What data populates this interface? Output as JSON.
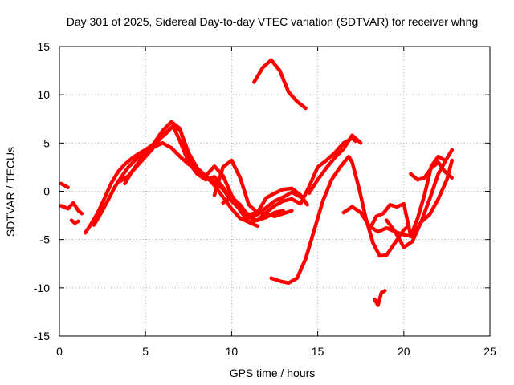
{
  "chart_data": {
    "type": "line",
    "title": "Day 301 of 2025, Sidereal Day-to-day VTEC variation (SDTVAR) for receiver whng",
    "xlabel": "GPS time / hours",
    "ylabel": "SDTVAR / TECUs",
    "xlim": [
      0,
      25
    ],
    "ylim": [
      -15,
      15
    ],
    "xticks": [
      0,
      5,
      10,
      15,
      20,
      25
    ],
    "yticks": [
      -15,
      -10,
      -5,
      0,
      5,
      10,
      15
    ],
    "grid": true,
    "legend": "none",
    "color": "#ff0000",
    "series": [
      {
        "name": "s1",
        "x": [
          0.1,
          0.5,
          0.8,
          1.1,
          1.3
        ],
        "y": [
          -1.5,
          -1.8,
          -1.2,
          -2.0,
          -2.3
        ]
      },
      {
        "name": "s2",
        "x": [
          0.1,
          0.3,
          0.5
        ],
        "y": [
          0.8,
          0.6,
          0.4
        ]
      },
      {
        "name": "s3",
        "x": [
          0.7,
          0.9,
          1.1
        ],
        "y": [
          -3.0,
          -3.3,
          -3.1
        ]
      },
      {
        "name": "s4",
        "x": [
          1.5,
          1.8,
          2.2,
          2.6,
          3.0,
          3.4,
          3.8,
          4.2,
          4.6,
          5.0,
          5.4,
          5.8,
          6.2,
          6.6,
          7.0,
          7.5,
          8.0,
          8.5,
          9.0,
          9.5,
          10.0,
          10.5,
          11.0,
          11.5,
          12.0,
          12.5,
          13.0,
          13.5
        ],
        "y": [
          -4.3,
          -3.5,
          -2.3,
          -0.8,
          0.8,
          2.0,
          2.8,
          3.4,
          3.9,
          4.3,
          4.8,
          5.4,
          6.0,
          6.8,
          5.2,
          3.0,
          1.8,
          1.5,
          1.0,
          0.2,
          -1.0,
          -1.9,
          -2.4,
          -2.2,
          -2.3,
          -2.6,
          -2.3,
          -2.0
        ]
      },
      {
        "name": "s5",
        "x": [
          2.0,
          2.4,
          2.8,
          3.2,
          3.6,
          4.0,
          4.5,
          5.0,
          5.5,
          6.0,
          6.5,
          7.0,
          7.5,
          8.0,
          8.5,
          9.0,
          9.5,
          10.0,
          10.5,
          11.0,
          11.5,
          12.0,
          12.5,
          13.0
        ],
        "y": [
          -3.5,
          -2.3,
          -1.0,
          0.4,
          1.5,
          2.5,
          3.4,
          4.1,
          4.6,
          5.0,
          4.5,
          3.6,
          2.8,
          2.2,
          1.6,
          0.6,
          -0.6,
          -1.8,
          -2.8,
          -3.2,
          -3.0,
          -2.7,
          -2.2,
          -2.0
        ]
      },
      {
        "name": "s6",
        "x": [
          3.5,
          4.0,
          4.5,
          5.0,
          5.5,
          6.0,
          6.5,
          7.0,
          7.5,
          8.0,
          8.5,
          9.0,
          9.5,
          10.0,
          10.5,
          11.0,
          11.5
        ],
        "y": [
          1.0,
          1.6,
          2.6,
          3.6,
          4.6,
          5.8,
          6.6,
          6.4,
          4.0,
          2.4,
          1.6,
          2.6,
          1.6,
          -0.4,
          -2.0,
          -3.2,
          -3.6
        ]
      },
      {
        "name": "s7",
        "x": [
          3.8,
          4.2,
          4.6,
          5.0,
          5.5,
          6.0,
          6.5,
          7.0,
          7.5,
          8.0,
          8.5,
          9.0,
          9.5,
          10.0,
          10.5,
          11.0,
          11.5,
          12.0,
          12.5,
          13.0,
          13.5,
          14.0,
          14.5,
          15.0,
          15.5,
          16.0,
          16.5,
          17.0,
          17.2
        ],
        "y": [
          0.8,
          2.0,
          3.0,
          3.8,
          5.0,
          6.3,
          7.2,
          6.5,
          3.5,
          1.8,
          1.2,
          1.5,
          0.4,
          -0.8,
          -1.7,
          -2.7,
          -3.0,
          -2.2,
          -1.5,
          -1.0,
          -0.8,
          -1.3,
          0.5,
          2.5,
          3.2,
          4.0,
          5.0,
          5.5,
          5.2
        ]
      },
      {
        "name": "s8",
        "x": [
          9.0,
          9.5,
          10.0,
          10.5,
          11.0,
          11.5,
          12.0,
          12.5,
          13.0,
          13.5,
          14.0,
          14.4
        ],
        "y": [
          -0.4,
          2.5,
          3.2,
          1.4,
          -1.4,
          -2.2,
          -0.7,
          -0.2,
          0.2,
          0.3,
          -0.4,
          -1.4
        ]
      },
      {
        "name": "s9",
        "x": [
          9.5,
          10.0,
          10.5,
          11.0,
          11.5,
          12.0,
          12.5,
          13.0,
          13.5,
          14.0
        ],
        "y": [
          -1.2,
          -0.6,
          -1.4,
          -2.6,
          -2.4,
          -1.7,
          -1.0,
          -0.6,
          -0.1,
          -0.6
        ]
      },
      {
        "name": "s10",
        "x": [
          11.3,
          11.8,
          12.3,
          12.8,
          13.3,
          13.8,
          14.3
        ],
        "y": [
          11.3,
          12.8,
          13.6,
          12.5,
          10.3,
          9.3,
          8.6
        ]
      },
      {
        "name": "s11",
        "x": [
          12.3,
          12.8,
          13.3,
          13.8,
          14.3,
          14.8,
          15.3,
          15.8,
          16.3,
          16.8,
          17.0,
          17.4,
          17.8,
          18.2,
          18.6,
          19.0,
          19.5,
          20.0,
          20.3
        ],
        "y": [
          -9.0,
          -9.3,
          -9.5,
          -9.0,
          -7.0,
          -4.0,
          -1.0,
          1.2,
          2.5,
          3.6,
          3.0,
          0.3,
          -2.8,
          -5.3,
          -6.7,
          -6.6,
          -5.3,
          -4.0,
          -3.6
        ]
      },
      {
        "name": "s12",
        "x": [
          14.5,
          15.0,
          15.5,
          16.0,
          16.5,
          17.0,
          17.5
        ],
        "y": [
          -0.2,
          1.2,
          2.4,
          3.5,
          4.4,
          5.8,
          5.0
        ]
      },
      {
        "name": "s13",
        "x": [
          16.5,
          17.0,
          17.5,
          18.0,
          18.5,
          19.0,
          19.5,
          20.0,
          20.5,
          21.0,
          21.5,
          22.0,
          22.5,
          22.8
        ],
        "y": [
          -2.2,
          -1.6,
          -2.2,
          -3.6,
          -4.2,
          -3.8,
          -4.2,
          -5.8,
          -5.2,
          -3.2,
          -0.8,
          1.8,
          3.4,
          4.3
        ]
      },
      {
        "name": "s14",
        "x": [
          18.0,
          18.4,
          18.8,
          19.2,
          19.6,
          20.0,
          20.4,
          20.8,
          21.2,
          21.6,
          22.0,
          22.4
        ],
        "y": [
          -4.0,
          -2.6,
          -2.3,
          -1.4,
          -1.6,
          -1.3,
          -4.6,
          -2.8,
          -0.4,
          2.6,
          3.6,
          3.2
        ]
      },
      {
        "name": "s15",
        "x": [
          18.3,
          18.5,
          18.7,
          18.9
        ],
        "y": [
          -11.2,
          -11.8,
          -10.5,
          -10.3
        ]
      },
      {
        "name": "s16",
        "x": [
          19.0,
          19.5,
          20.0,
          20.5,
          21.0,
          21.5,
          22.0,
          22.5,
          22.8
        ],
        "y": [
          -3.0,
          -4.2,
          -4.5,
          -4.7,
          -3.2,
          -2.4,
          -0.8,
          1.2,
          3.2
        ]
      },
      {
        "name": "s17",
        "x": [
          20.4,
          20.8,
          21.2,
          21.6,
          22.0,
          22.4,
          22.8
        ],
        "y": [
          1.8,
          1.2,
          1.4,
          2.4,
          3.0,
          2.0,
          1.4
        ]
      }
    ]
  }
}
